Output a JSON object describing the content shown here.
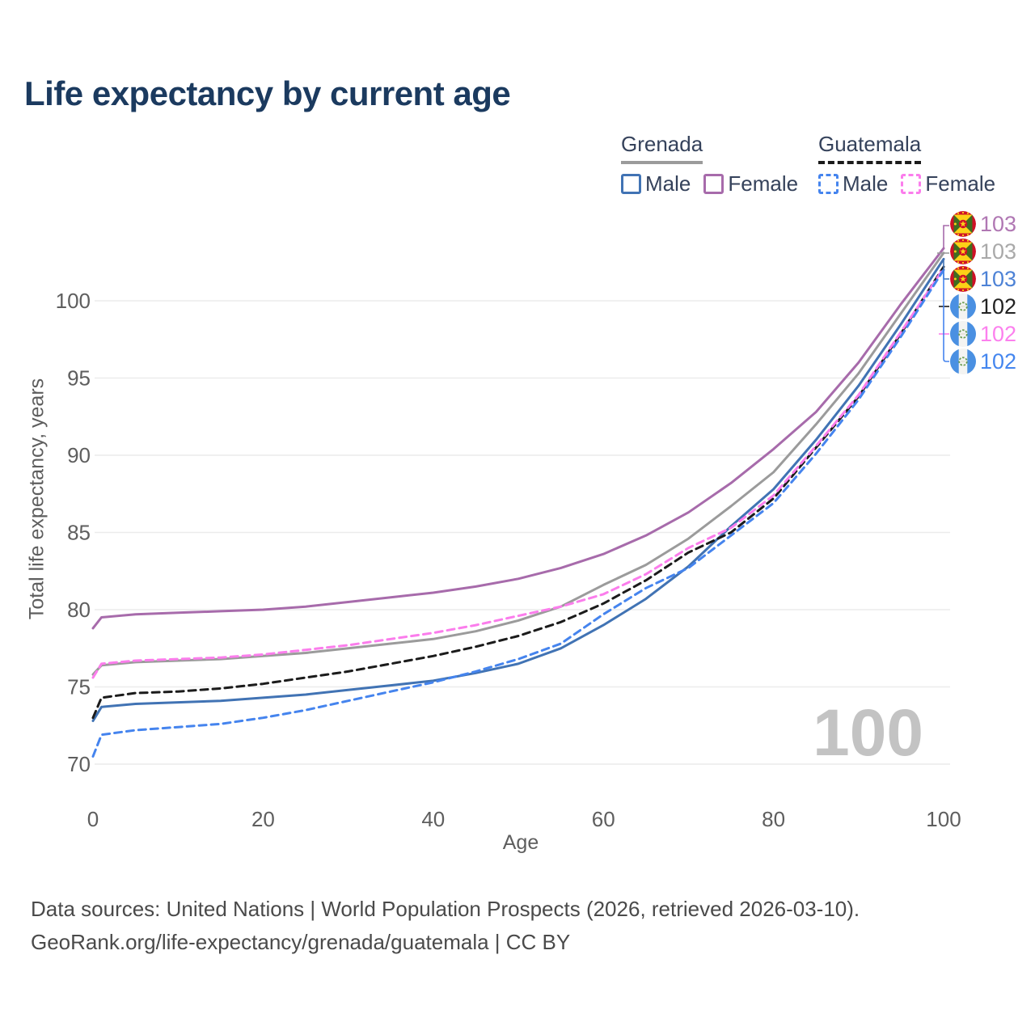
{
  "title": "Life expectancy by current age",
  "legend": {
    "groups": [
      {
        "name": "Grenada",
        "line_style": "solid",
        "underline_color": "#9b9b9b",
        "items": [
          {
            "label": "Male",
            "color": "#4173b4"
          },
          {
            "label": "Female",
            "color": "#a76bab"
          }
        ]
      },
      {
        "name": "Guatemala",
        "line_style": "dashed",
        "underline_color": "#1b1b1b",
        "items": [
          {
            "label": "Male",
            "color": "#4584ee"
          },
          {
            "label": "Female",
            "color": "#fb7dec"
          }
        ]
      }
    ]
  },
  "watermark_age": "100",
  "footer": {
    "line1": "Data sources: United Nations | World Population Prospects (2026, retrieved 2026-03-10).",
    "line2": "GeoRank.org/life-expectancy/grenada/guatemala | CC BY"
  },
  "chart_data": {
    "type": "line",
    "title": "Life expectancy by current age",
    "xlabel": "Age",
    "ylabel": "Total life expectancy, years",
    "x_ticks": [
      0,
      20,
      40,
      60,
      80,
      100
    ],
    "y_ticks": [
      70,
      75,
      80,
      85,
      90,
      95,
      100
    ],
    "xlim": [
      0,
      100
    ],
    "ylim": [
      69.5,
      104
    ],
    "grid": "horizontal-only",
    "legend_position": "top-right",
    "x": [
      0,
      1,
      5,
      10,
      15,
      20,
      25,
      30,
      35,
      40,
      45,
      50,
      55,
      60,
      65,
      70,
      75,
      80,
      85,
      90,
      95,
      100
    ],
    "series": [
      {
        "name": "Grenada Female",
        "country": "Grenada",
        "sex": "Female",
        "color": "#a76bab",
        "dashed": false,
        "flag": "grenada",
        "end_label": "103",
        "end_label_color": "#b077b3",
        "values": [
          78.8,
          79.5,
          79.7,
          79.8,
          79.9,
          80.0,
          80.2,
          80.5,
          80.8,
          81.1,
          81.5,
          82.0,
          82.7,
          83.6,
          84.8,
          86.3,
          88.2,
          90.4,
          92.8,
          96.0,
          99.8,
          103.4
        ]
      },
      {
        "name": "Grenada Both sexes",
        "country": "Grenada",
        "sex": "Both",
        "color": "#9b9b9b",
        "dashed": false,
        "flag": "grenada",
        "end_label": "103",
        "end_label_color": "#a9a9a9",
        "values": [
          75.8,
          76.4,
          76.6,
          76.7,
          76.8,
          77.0,
          77.2,
          77.5,
          77.8,
          78.1,
          78.6,
          79.3,
          80.2,
          81.6,
          82.9,
          84.6,
          86.7,
          88.9,
          92.0,
          95.3,
          99.2,
          103.1
        ]
      },
      {
        "name": "Grenada Male",
        "country": "Grenada",
        "sex": "Male",
        "color": "#4173b4",
        "dashed": false,
        "flag": "grenada",
        "end_label": "103",
        "end_label_color": "#4d82d6",
        "values": [
          72.8,
          73.7,
          73.9,
          74.0,
          74.1,
          74.3,
          74.5,
          74.8,
          75.1,
          75.4,
          75.9,
          76.5,
          77.5,
          79.0,
          80.7,
          82.8,
          85.4,
          87.8,
          91.0,
          94.5,
          98.5,
          102.7
        ]
      },
      {
        "name": "Guatemala Both sexes",
        "country": "Guatemala",
        "sex": "Both",
        "color": "#1b1b1b",
        "dashed": true,
        "flag": "guatemala",
        "end_label": "102",
        "end_label_color": "#222222",
        "values": [
          73.0,
          74.3,
          74.6,
          74.7,
          74.9,
          75.2,
          75.6,
          76.0,
          76.5,
          77.0,
          77.6,
          78.3,
          79.2,
          80.4,
          81.9,
          83.7,
          85.0,
          87.2,
          90.5,
          93.8,
          97.9,
          102.2
        ]
      },
      {
        "name": "Guatemala Female",
        "country": "Guatemala",
        "sex": "Female",
        "color": "#fb7dec",
        "dashed": true,
        "flag": "guatemala",
        "end_label": "102",
        "end_label_color": "#fc80ee",
        "values": [
          75.6,
          76.5,
          76.7,
          76.8,
          76.9,
          77.1,
          77.4,
          77.7,
          78.1,
          78.5,
          79.0,
          79.6,
          80.2,
          81.0,
          82.3,
          84.0,
          85.3,
          87.4,
          90.6,
          93.9,
          98.0,
          102.1
        ]
      },
      {
        "name": "Guatemala Male",
        "country": "Guatemala",
        "sex": "Male",
        "color": "#4584ee",
        "dashed": true,
        "flag": "guatemala",
        "end_label": "102",
        "end_label_color": "#4486ef",
        "values": [
          70.5,
          71.9,
          72.2,
          72.4,
          72.6,
          73.0,
          73.5,
          74.1,
          74.7,
          75.3,
          76.0,
          76.8,
          77.8,
          79.7,
          81.4,
          82.7,
          84.8,
          86.9,
          90.1,
          93.6,
          97.7,
          102.0
        ]
      }
    ]
  }
}
